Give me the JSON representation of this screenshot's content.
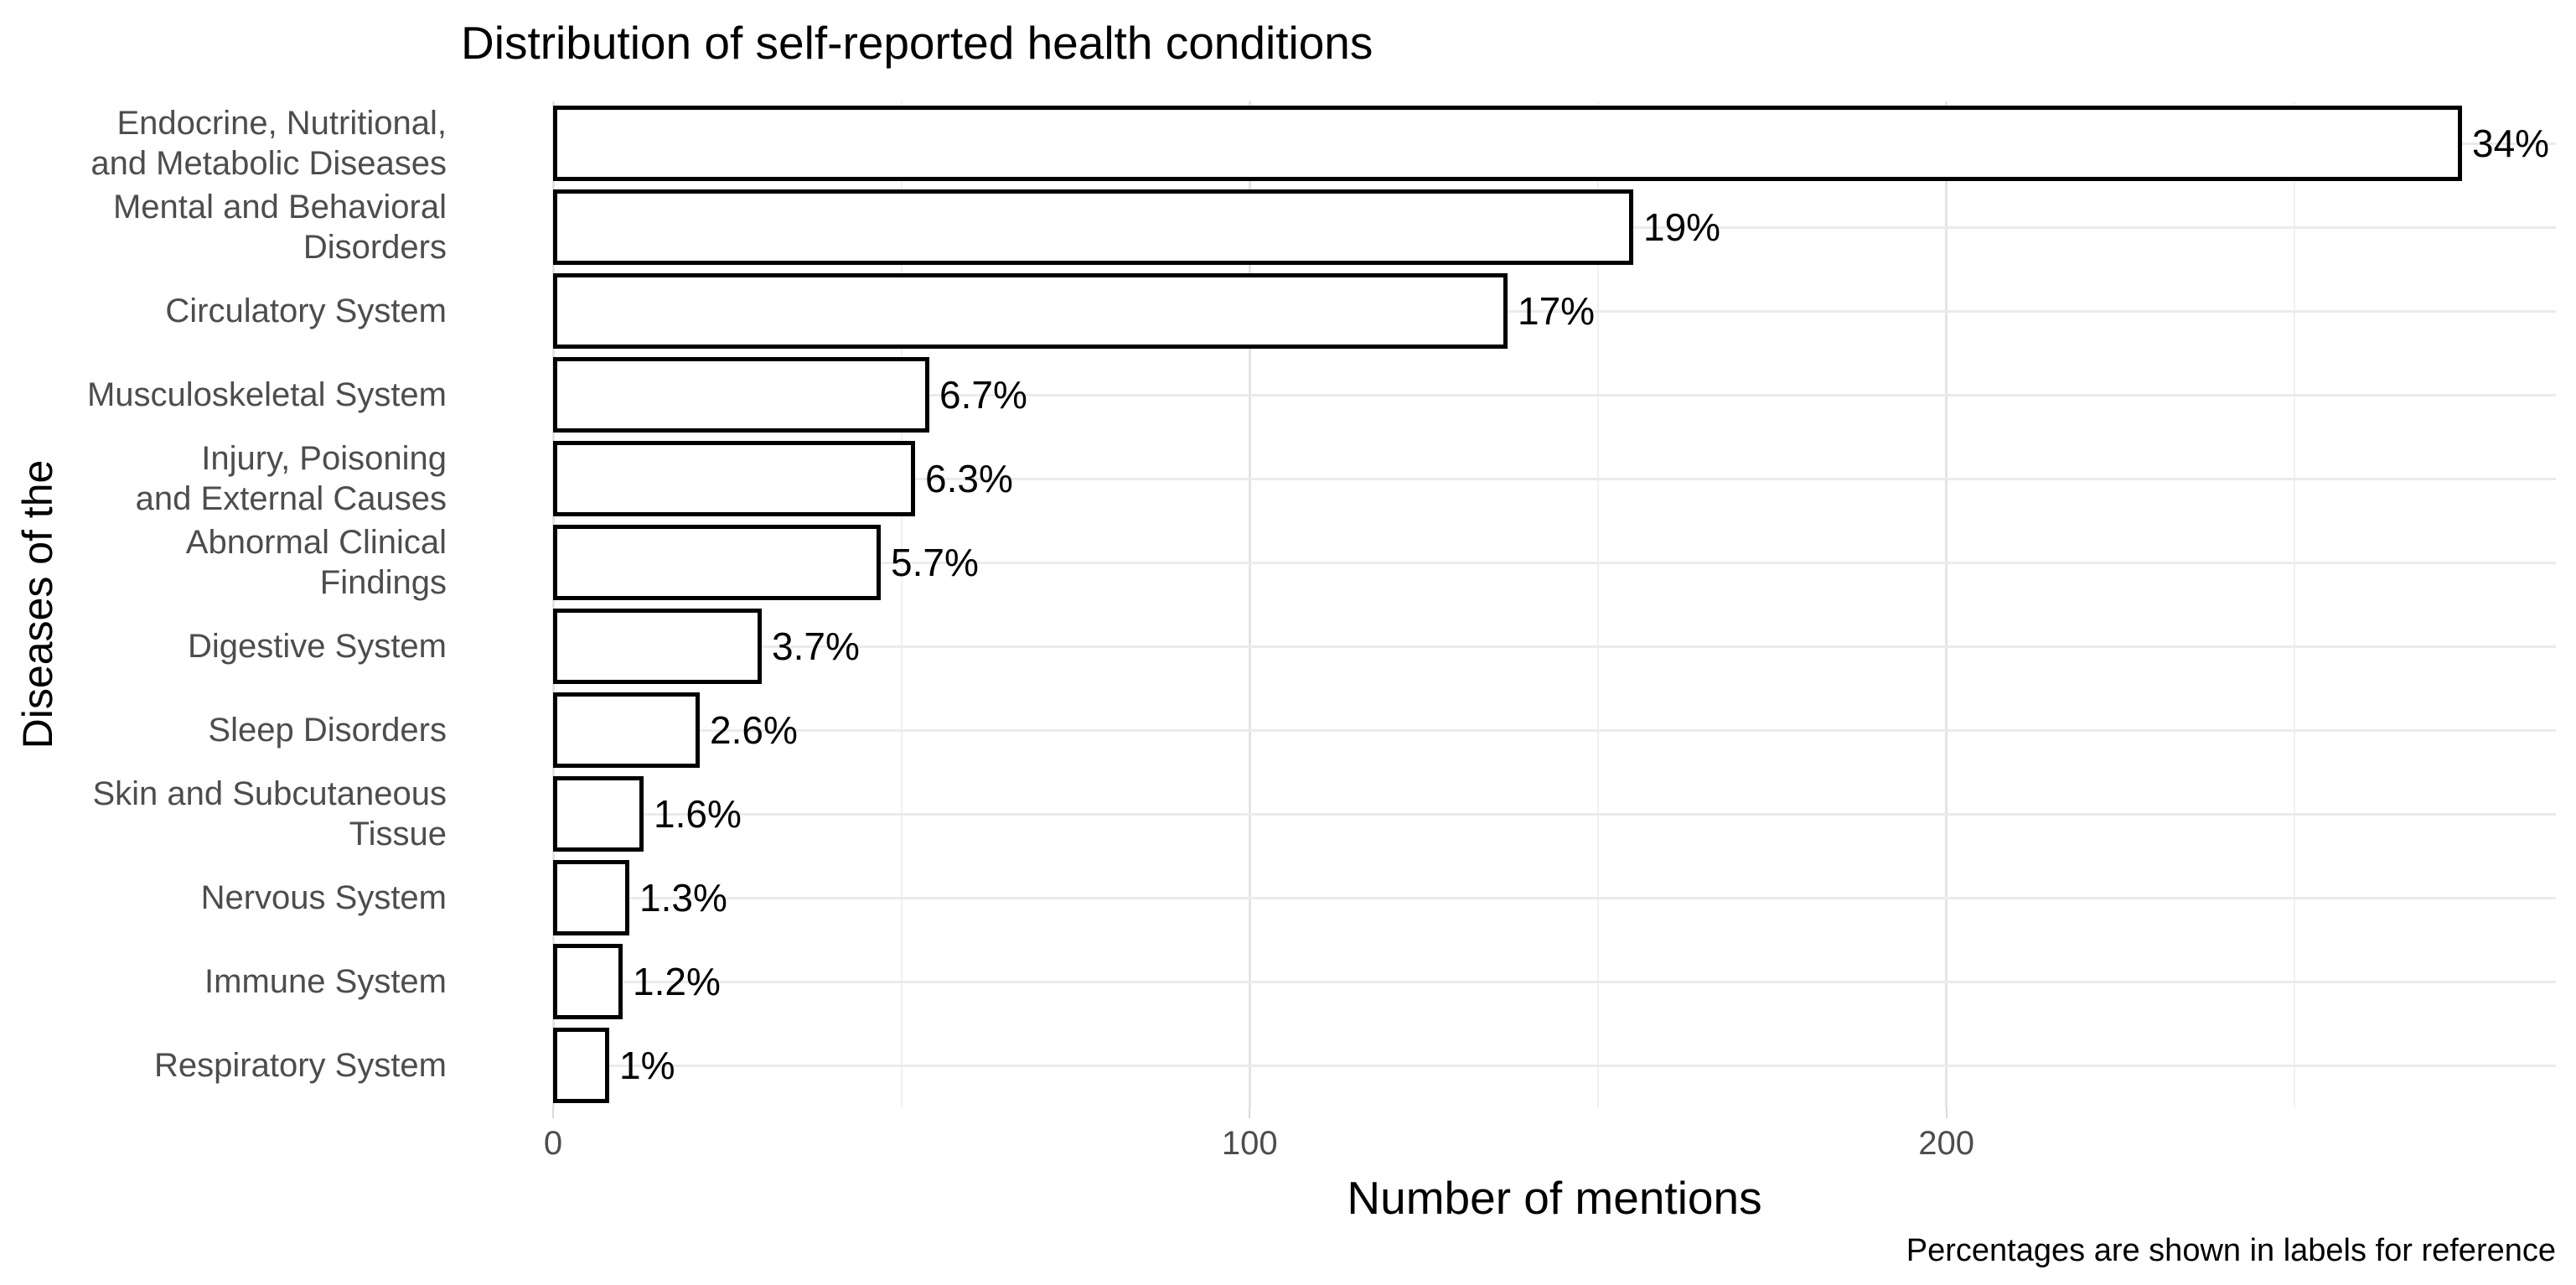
{
  "title": "Distribution of self-reported health conditions",
  "chart_data": {
    "type": "bar",
    "orientation": "horizontal",
    "title": "Distribution of self-reported health conditions",
    "xlabel": "Number of mentions",
    "ylabel": "Diseases of the",
    "caption": "Percentages are shown in labels for reference",
    "categories": [
      "Endocrine, Nutritional,\nand Metabolic Diseases",
      "Mental and Behavioral\nDisorders",
      "Circulatory System",
      "Musculoskeletal System",
      "Injury, Poisoning\nand External Causes",
      "Abnormal Clinical\nFindings",
      "Digestive System",
      "Sleep Disorders",
      "Skin and Subcutaneous\nTissue",
      "Nervous System",
      "Immune System",
      "Respiratory System"
    ],
    "values": [
      274,
      155,
      137,
      54,
      52,
      47,
      30,
      21,
      13,
      11,
      10,
      8
    ],
    "bar_labels": [
      "34%",
      "19%",
      "17%",
      "6.7%",
      "6.3%",
      "5.7%",
      "3.7%",
      "2.6%",
      "1.6%",
      "1.3%",
      "1.2%",
      "1%"
    ],
    "x_axis": {
      "tick_labels": [
        "0",
        "100",
        "200"
      ],
      "ticks_major": [
        0,
        100,
        200
      ],
      "ticks_minor": [
        50,
        150,
        250
      ],
      "xlim": [
        0,
        287.5
      ]
    },
    "grid": "on",
    "legend": "none",
    "colors": {
      "bar_fill": "#ffffff",
      "bar_stroke": "#000000",
      "grid_major": "#e4e4e4",
      "grid_minor": "#f0f0f0",
      "axis_text": "#4d4d4d",
      "text": "#000000",
      "background": "#ffffff"
    }
  }
}
